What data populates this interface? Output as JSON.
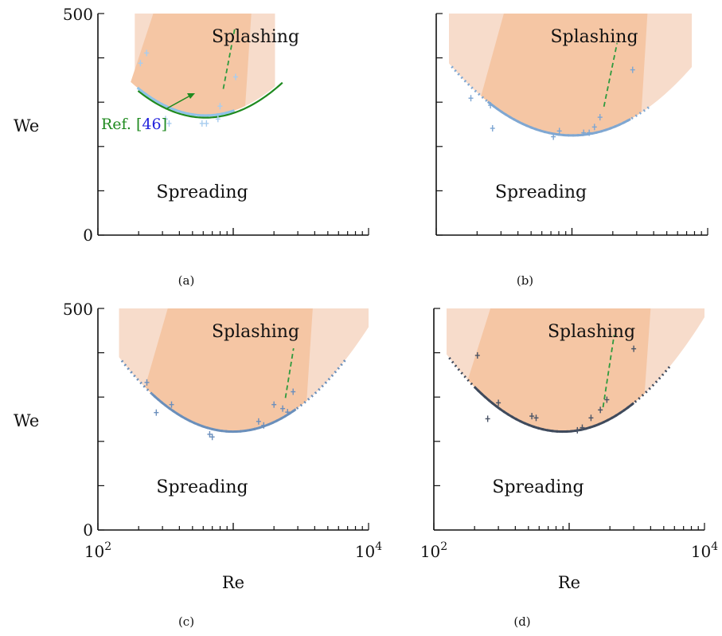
{
  "colors": {
    "region_light": "#f7dccb",
    "region_main": "#f5c6a4",
    "ref_curve": "#1f8a1f",
    "dashed_line": "#2e9a3e",
    "ref_number": "#2222dd",
    "axis": "#111111",
    "panel_curves": [
      "#8fc2e8",
      "#7fa7d2",
      "#6a8fbb",
      "#3f4a5c"
    ],
    "panel_markers": [
      "#a8cdef",
      "#7da6d3",
      "#6b8fbd",
      "#4a5466"
    ]
  },
  "chart_data": [
    {
      "type": "scatter",
      "panel": "(a)",
      "xscale": "log",
      "xlim": [
        100,
        10000
      ],
      "ylim": [
        0,
        500
      ],
      "ylabel": "We",
      "xlabel": "",
      "y_ticks": [
        "0",
        "500"
      ],
      "x_ticks": [],
      "regions": [
        "Splashing",
        "Spreading"
      ],
      "annotation": {
        "prefix": "Ref. [",
        "number": "46",
        "suffix": "]"
      },
      "points": [
        [
          206,
          388
        ],
        [
          229,
          411
        ],
        [
          316,
          262
        ],
        [
          336,
          252
        ],
        [
          588,
          252
        ],
        [
          634,
          252
        ],
        [
          771,
          262
        ],
        [
          799,
          291
        ],
        [
          1041,
          357
        ]
      ],
      "boundary": {
        "vertex_x": 623,
        "vertex_y": 270,
        "k": 248,
        "solid_x": [
          196,
          1020
        ],
        "dotted_x": [
          196,
          1020
        ]
      },
      "ref_curve": {
        "vertex_x": 623,
        "vertex_y": 265,
        "k": 244,
        "x_range": [
          198,
          2310
        ]
      },
      "dashed_line": [
        [
          844,
          330
        ],
        [
          1025,
          465
        ]
      ]
    },
    {
      "type": "scatter",
      "panel": "(b)",
      "xscale": "log",
      "xlim": [
        100,
        10000
      ],
      "ylim": [
        0,
        500
      ],
      "ylabel": "",
      "xlabel": "",
      "y_ticks": [],
      "x_ticks": [],
      "regions": [
        "Splashing",
        "Spreading"
      ],
      "annotation": null,
      "points": [
        [
          180,
          309
        ],
        [
          251,
          293
        ],
        [
          260,
          241
        ],
        [
          730,
          222
        ],
        [
          808,
          235
        ],
        [
          1220,
          231
        ],
        [
          1340,
          231
        ],
        [
          1465,
          244
        ],
        [
          1610,
          266
        ],
        [
          2800,
          373
        ]
      ],
      "boundary": {
        "vertex_x": 1000,
        "vertex_y": 225,
        "k": 198,
        "solid_x": [
          240,
          2700
        ],
        "dotted_x": [
          130,
          3830
        ]
      },
      "ref_curve": null,
      "dashed_line": [
        [
          1720,
          290
        ],
        [
          2150,
          433
        ]
      ]
    },
    {
      "type": "scatter",
      "panel": "(c)",
      "xscale": "log",
      "xlim": [
        100,
        10000
      ],
      "ylim": [
        0,
        500
      ],
      "ylabel": "We",
      "xlabel": "Re",
      "y_ticks": [
        "0",
        "500"
      ],
      "x_ticks": [
        "10^2",
        "10^4"
      ],
      "regions": [
        "Splashing",
        "Spreading"
      ],
      "annotation": null,
      "points": [
        [
          230,
          333
        ],
        [
          270,
          265
        ],
        [
          350,
          283
        ],
        [
          670,
          216
        ],
        [
          700,
          210
        ],
        [
          1540,
          245
        ],
        [
          1680,
          236
        ],
        [
          2000,
          283
        ],
        [
          2320,
          274
        ],
        [
          2520,
          266
        ],
        [
          2770,
          312
        ]
      ],
      "boundary": {
        "vertex_x": 1000,
        "vertex_y": 222,
        "k": 236,
        "solid_x": [
          250,
          2900
        ],
        "dotted_x": [
          150,
          6800
        ]
      },
      "ref_curve": null,
      "dashed_line": [
        [
          2430,
          298
        ],
        [
          2790,
          410
        ]
      ]
    },
    {
      "type": "scatter",
      "panel": "(d)",
      "xscale": "log",
      "xlim": [
        100,
        10000
      ],
      "ylim": [
        0,
        500
      ],
      "ylabel": "",
      "xlabel": "Re",
      "y_ticks": [],
      "x_ticks": [
        "10^2",
        "10^4"
      ],
      "regions": [
        "Splashing",
        "Spreading"
      ],
      "annotation": null,
      "points": [
        [
          210,
          394
        ],
        [
          250,
          251
        ],
        [
          300,
          287
        ],
        [
          530,
          257
        ],
        [
          570,
          253
        ],
        [
          1150,
          225
        ],
        [
          1250,
          231
        ],
        [
          1450,
          253
        ],
        [
          1700,
          271
        ],
        [
          1900,
          294
        ],
        [
          3000,
          409
        ]
      ],
      "boundary": {
        "vertex_x": 900,
        "vertex_y": 222,
        "k": 236,
        "solid_x": [
          200,
          3000
        ],
        "dotted_x": [
          130,
          5600
        ]
      },
      "ref_curve": null,
      "dashed_line": [
        [
          1780,
          277
        ],
        [
          2150,
          440
        ]
      ]
    }
  ]
}
